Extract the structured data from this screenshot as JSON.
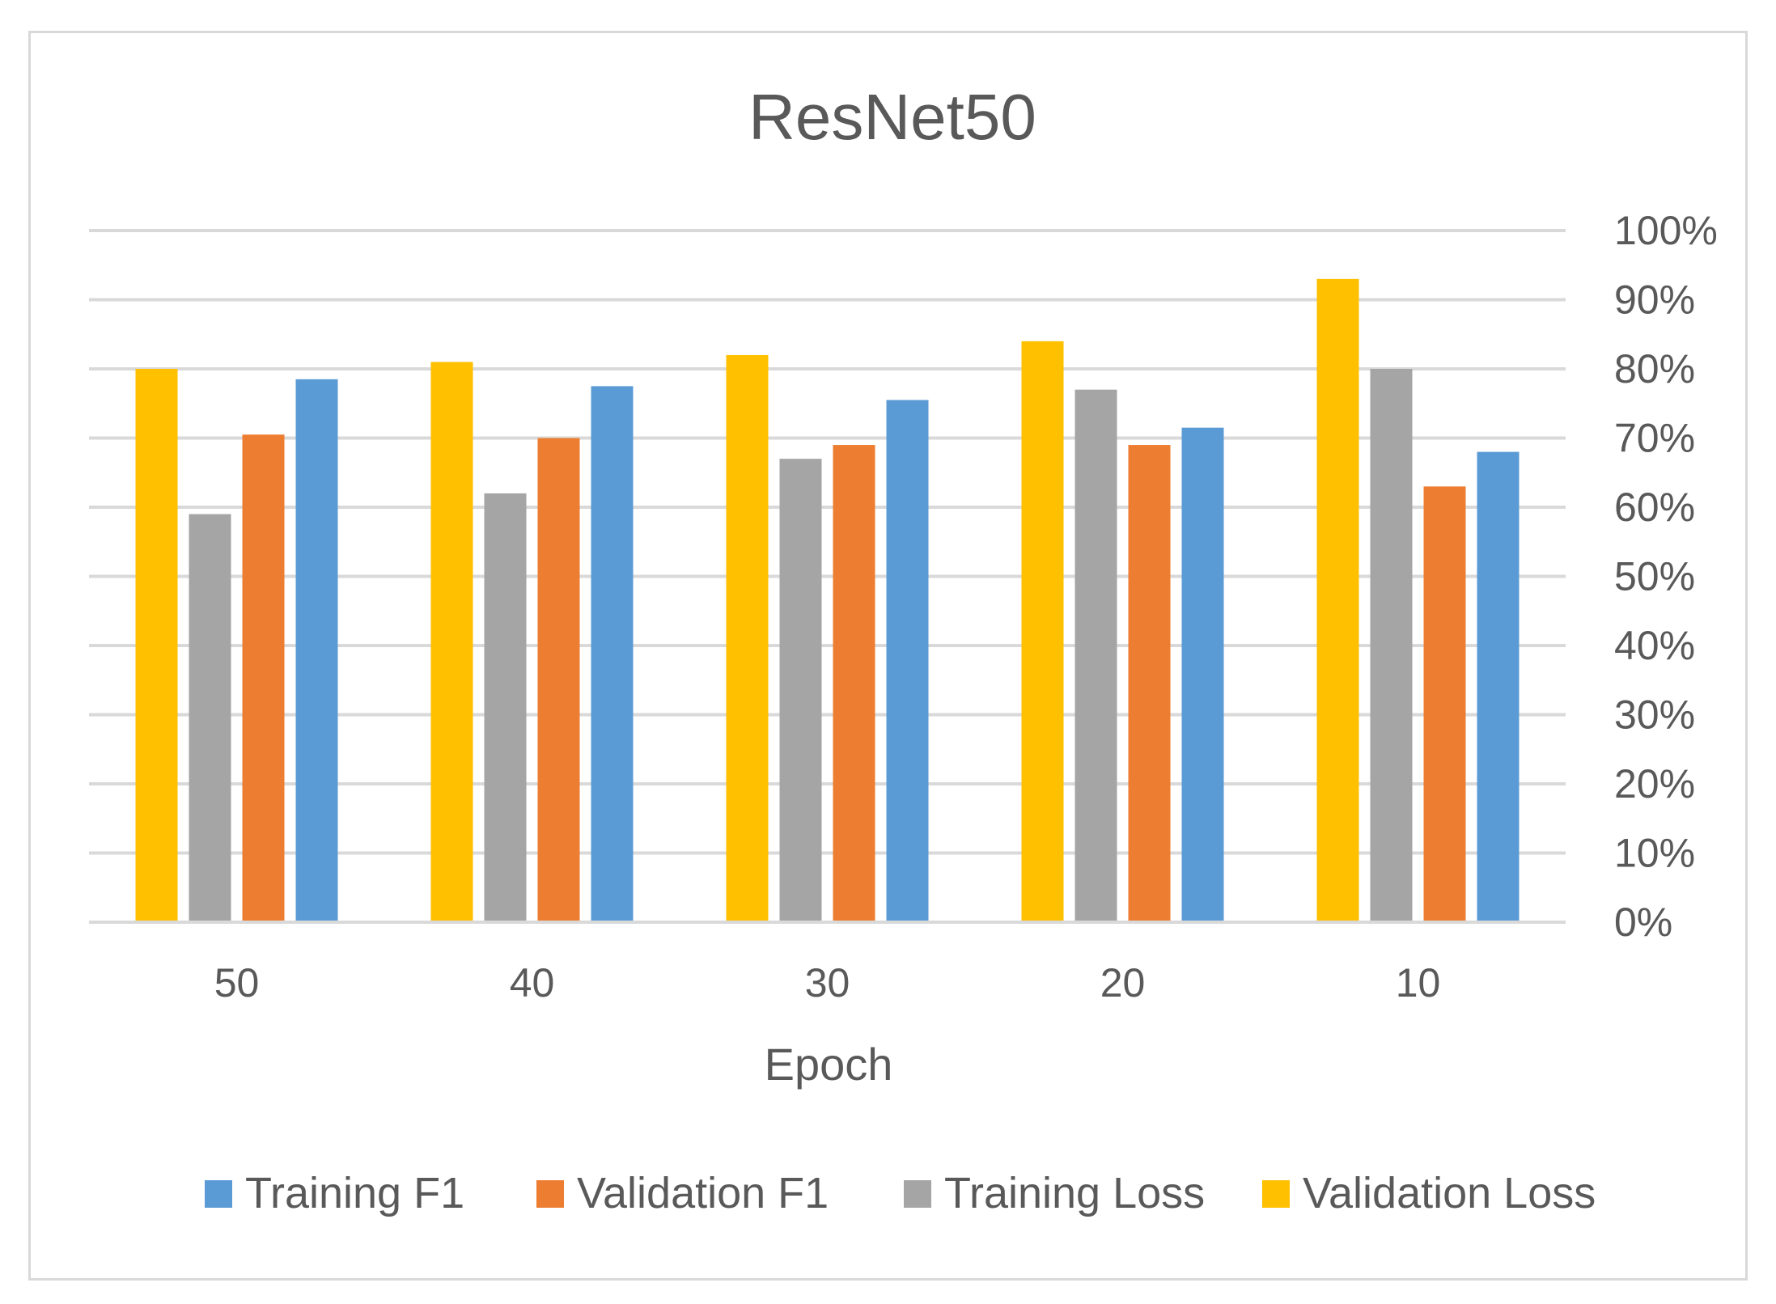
{
  "chart_data": {
    "type": "bar",
    "title": "ResNet50",
    "xlabel": "Epoch",
    "ylabel": "",
    "categories": [
      "50",
      "40",
      "30",
      "20",
      "10"
    ],
    "series": [
      {
        "name": "Validation Loss",
        "color": "#FFC000",
        "values": [
          0.8,
          0.81,
          0.82,
          0.84,
          0.93
        ]
      },
      {
        "name": "Training Loss",
        "color": "#A5A5A5",
        "values": [
          0.59,
          0.62,
          0.67,
          0.77,
          0.8
        ]
      },
      {
        "name": "Validation F1",
        "color": "#ED7D31",
        "values": [
          0.705,
          0.7,
          0.69,
          0.69,
          0.63
        ]
      },
      {
        "name": "Training F1",
        "color": "#5B9BD5",
        "values": [
          0.785,
          0.775,
          0.755,
          0.715,
          0.68
        ]
      }
    ],
    "legend_order": [
      "Training F1",
      "Validation F1",
      "Training Loss",
      "Validation Loss"
    ],
    "ylim": [
      0,
      1
    ],
    "yticks": [
      "0%",
      "10%",
      "20%",
      "30%",
      "40%",
      "50%",
      "60%",
      "70%",
      "80%",
      "90%",
      "100%"
    ],
    "y_axis_side": "right",
    "grid": true,
    "legend_position": "bottom"
  }
}
